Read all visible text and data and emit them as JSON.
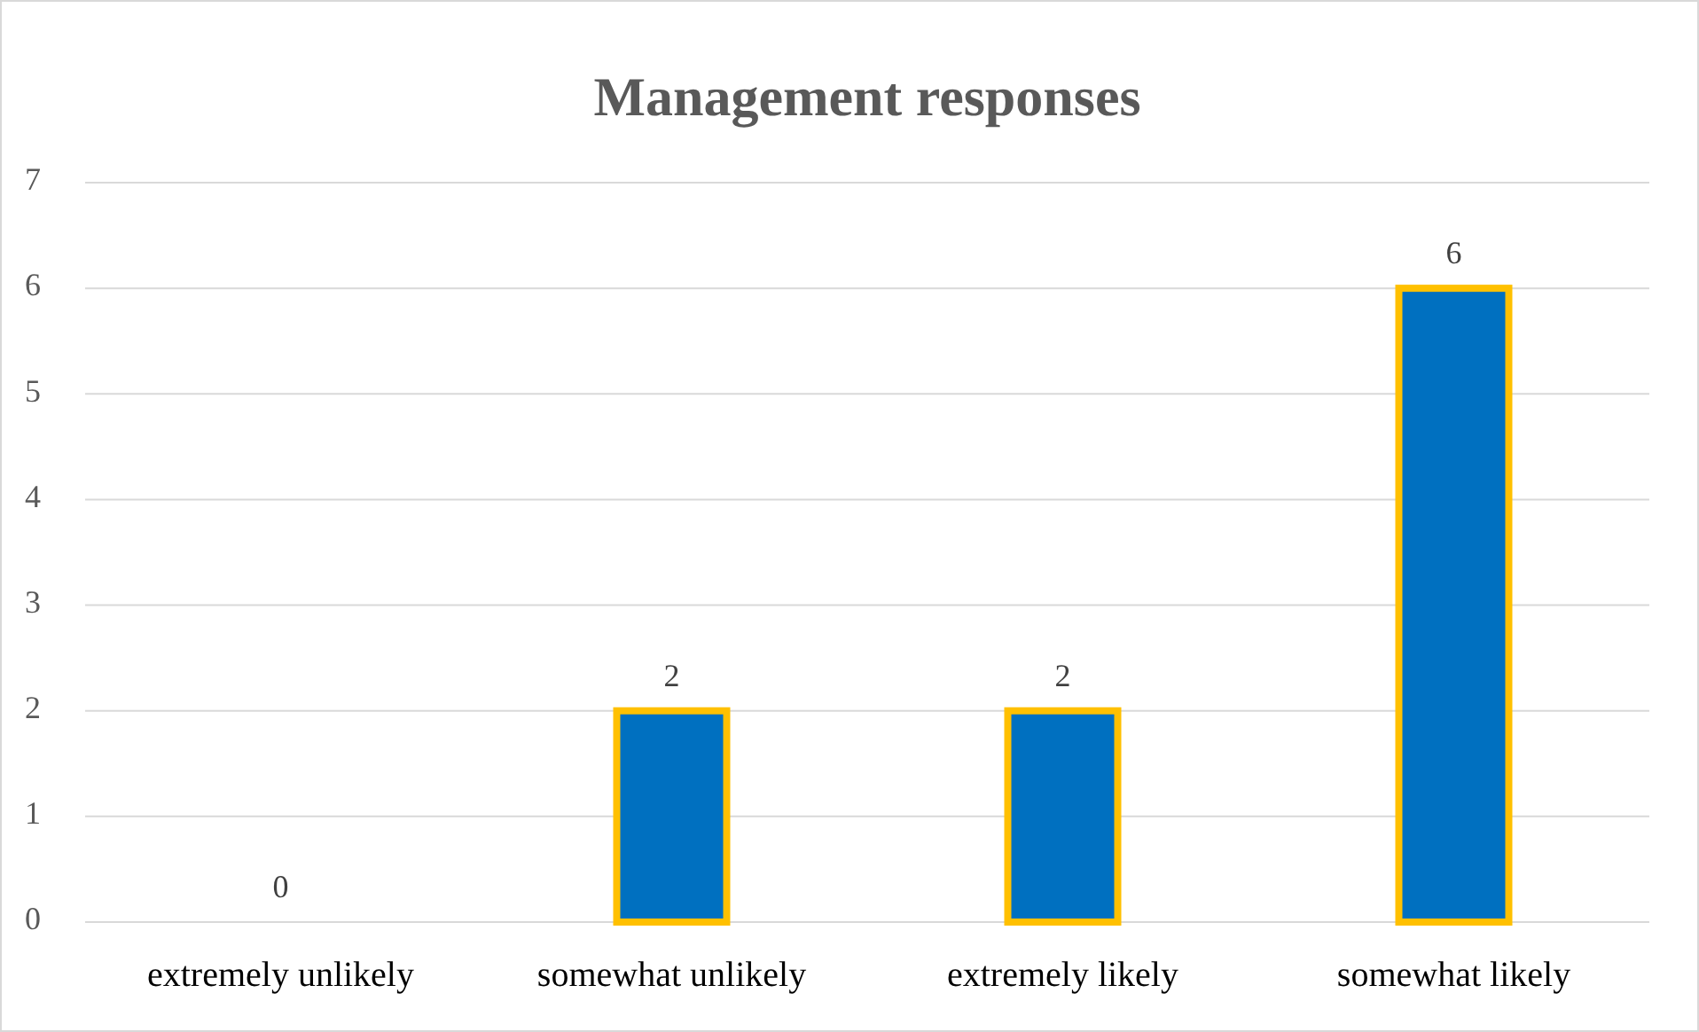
{
  "chart_data": {
    "type": "bar",
    "title": "Management responses",
    "categories": [
      "extremely unlikely",
      "somewhat unlikely",
      "extremely likely",
      "somewhat likely"
    ],
    "values": [
      0,
      2,
      2,
      6
    ],
    "color": "#0070c0",
    "ylim": [
      0,
      7
    ],
    "yticks": [
      0,
      1,
      2,
      3,
      4,
      5,
      6,
      7
    ],
    "grid": "y",
    "data_labels": true
  }
}
